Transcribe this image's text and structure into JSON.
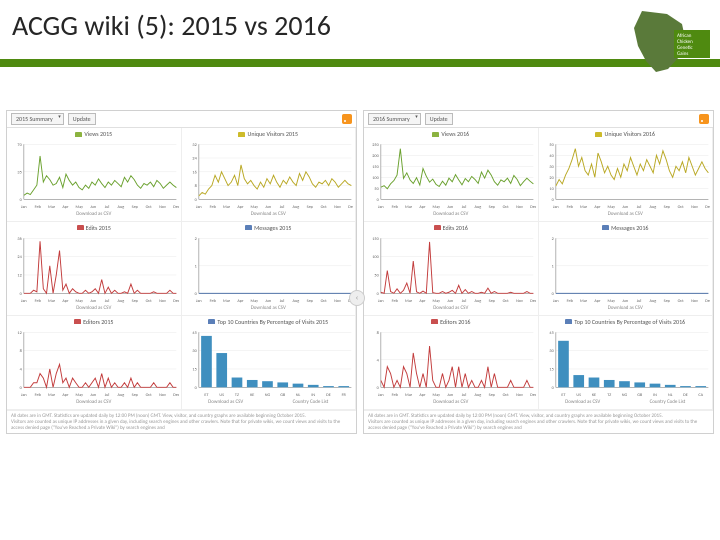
{
  "header": {
    "title": "ACGG wiki (5): 2015 vs 2016",
    "title_color": "#262626",
    "title_fontsize": 28,
    "bar_color": "#4f8a10"
  },
  "logo": {
    "africa_fill": "#5a7a3a",
    "text_box_fill": "#4f8a10",
    "lines": [
      "African",
      "Chicken",
      "Genetic",
      "Gains"
    ]
  },
  "global": {
    "months": [
      "Jan",
      "Feb",
      "Mar",
      "Apr",
      "May",
      "Jun",
      "Jul",
      "Aug",
      "Sep",
      "Oct",
      "Nov",
      "Dec"
    ],
    "grid_color": "#e6e6e6",
    "download_csv": "Download as CSV",
    "country_list": "Country Code List",
    "beginning": "beginning October 2015."
  },
  "left": {
    "summary_label": "2015 Summary",
    "update_label": "Update",
    "footer": "All dates are in GMT. Statistics are updated daily by 12:00 PM (noon) GMT. View, visitor, and country graphs are available",
    "footer2": "Visitors are counted as unique IP addresses in a given day, including search engines and other crawlers. Note that for private wikis, we count views and visits to the access denied page (\"You've Reached a Private Wiki\") by search engines and",
    "charts": [
      {
        "title": "Views 2015",
        "folder_color": "#8cb340",
        "line_color": "#6aa12e",
        "ymax": 70,
        "yticks": [
          0,
          35,
          70
        ],
        "series": [
          5,
          8,
          6,
          12,
          18,
          55,
          22,
          30,
          25,
          18,
          20,
          28,
          15,
          32,
          24,
          18,
          22,
          15,
          12,
          18,
          14,
          22,
          18,
          26,
          20,
          15,
          22,
          18,
          24,
          20,
          16,
          28,
          22,
          30,
          25,
          18,
          14,
          20,
          18,
          22,
          16,
          24,
          20,
          14,
          18,
          22,
          18,
          15
        ]
      },
      {
        "title": "Unique Visitors 2015",
        "folder_color": "#cdbb2a",
        "line_color": "#b9a824",
        "ymax": 32,
        "yticks": [
          0,
          8,
          16,
          24,
          32
        ],
        "series": [
          2,
          4,
          3,
          6,
          8,
          14,
          10,
          16,
          12,
          8,
          10,
          14,
          8,
          20,
          12,
          9,
          11,
          8,
          6,
          10,
          7,
          12,
          9,
          14,
          10,
          7,
          11,
          9,
          13,
          10,
          8,
          15,
          11,
          16,
          13,
          9,
          7,
          10,
          9,
          11,
          8,
          12,
          10,
          7,
          9,
          11,
          9,
          8
        ]
      },
      {
        "title": "Edits 2015",
        "folder_color": "#c94f4f",
        "line_color": "#c23b3b",
        "ymax": 36,
        "yticks": [
          0,
          12,
          24,
          36
        ],
        "series": [
          0,
          0,
          0,
          2,
          1,
          34,
          3,
          0,
          18,
          0,
          12,
          28,
          2,
          6,
          0,
          3,
          1,
          0,
          0,
          2,
          0,
          1,
          3,
          0,
          9,
          0,
          4,
          0,
          2,
          0,
          0,
          1,
          0,
          6,
          0,
          2,
          0,
          0,
          0,
          0,
          1,
          0,
          0,
          0,
          0,
          2,
          0,
          0
        ]
      },
      {
        "title": "Messages 2015",
        "folder_color": "#5b7fb8",
        "line_color": "#3f66a3",
        "ymax": 2,
        "yticks": [
          0,
          1,
          2
        ],
        "series": [
          0,
          0,
          0,
          0,
          0,
          0,
          0,
          0,
          0,
          0,
          0,
          0,
          0,
          0,
          0,
          0,
          0,
          0,
          0,
          0,
          0,
          0,
          0,
          0,
          0,
          0,
          0,
          0,
          0,
          0,
          0,
          0,
          0,
          0,
          0,
          0,
          0,
          0,
          0,
          0,
          0,
          0,
          0,
          0,
          0,
          0,
          0,
          0
        ]
      },
      {
        "title": "Editors 2015",
        "folder_color": "#c94f4f",
        "line_color": "#c23b3b",
        "ymax": 12,
        "yticks": [
          0,
          4,
          8,
          12
        ],
        "series": [
          0,
          0,
          0,
          1,
          1,
          3,
          2,
          0,
          4,
          0,
          3,
          5,
          1,
          2,
          0,
          2,
          1,
          0,
          0,
          1,
          0,
          1,
          2,
          0,
          3,
          0,
          2,
          0,
          1,
          0,
          0,
          1,
          0,
          2,
          0,
          1,
          0,
          0,
          0,
          0,
          1,
          0,
          0,
          0,
          0,
          1,
          0,
          0
        ]
      },
      {
        "title": "Top 10 Countries By Percentage of Visits 2015",
        "folder_color": "#5b7fb8",
        "bar_color": "#3f8fbf",
        "ymax": 45,
        "yticks": [
          0,
          15,
          30,
          45
        ],
        "labels": [
          "ET",
          "US",
          "TZ",
          "KE",
          "NG",
          "GB",
          "NL",
          "IN",
          "DE",
          "FR"
        ],
        "values": [
          42,
          28,
          8,
          6,
          5,
          4,
          3,
          2,
          1,
          1
        ]
      }
    ]
  },
  "right": {
    "summary_label": "2016 Summary",
    "update_label": "Update",
    "footer": "All dates are in GMT. Statistics are updated daily by 12:00 PM (noon) GMT. View, visitor, and country graphs are available",
    "footer2": "Visitors are counted as unique IP addresses in a given day, including search engines and other crawlers. Note that for private wikis, we count views and visits to the access denied page (\"You've Reached a Private Wiki\") by search engines and",
    "charts": [
      {
        "title": "Views 2016",
        "folder_color": "#8cb340",
        "line_color": "#6aa12e",
        "ymax": 250,
        "yticks": [
          0,
          50,
          100,
          150,
          200,
          250
        ],
        "series": [
          55,
          62,
          48,
          70,
          85,
          110,
          230,
          95,
          120,
          88,
          72,
          98,
          65,
          140,
          105,
          78,
          92,
          68,
          58,
          82,
          64,
          96,
          80,
          112,
          88,
          66,
          94,
          80,
          104,
          90,
          72,
          124,
          96,
          132,
          110,
          80,
          64,
          88,
          80,
          96,
          72,
          108,
          90,
          62,
          80,
          96,
          82,
          70
        ]
      },
      {
        "title": "Unique Visitors 2016",
        "folder_color": "#cdbb2a",
        "line_color": "#b9a824",
        "ymax": 50,
        "yticks": [
          0,
          10,
          20,
          30,
          40,
          50
        ],
        "series": [
          12,
          18,
          14,
          22,
          28,
          36,
          46,
          30,
          38,
          26,
          22,
          32,
          20,
          42,
          34,
          24,
          30,
          22,
          18,
          28,
          20,
          32,
          26,
          38,
          30,
          22,
          32,
          26,
          36,
          30,
          24,
          40,
          32,
          44,
          36,
          26,
          20,
          30,
          26,
          34,
          24,
          38,
          30,
          22,
          28,
          34,
          28,
          24
        ]
      },
      {
        "title": "Edits 2016",
        "folder_color": "#c94f4f",
        "line_color": "#c23b3b",
        "ymax": 150,
        "yticks": [
          0,
          50,
          100,
          150
        ],
        "series": [
          3,
          0,
          62,
          5,
          0,
          12,
          0,
          8,
          28,
          0,
          88,
          4,
          0,
          6,
          0,
          140,
          2,
          0,
          0,
          5,
          0,
          3,
          8,
          0,
          22,
          0,
          10,
          0,
          5,
          0,
          0,
          3,
          0,
          14,
          0,
          5,
          0,
          0,
          0,
          0,
          3,
          0,
          0,
          0,
          0,
          5,
          0,
          0
        ]
      },
      {
        "title": "Messages 2016",
        "folder_color": "#5b7fb8",
        "line_color": "#3f66a3",
        "ymax": 2,
        "yticks": [
          0,
          1,
          2
        ],
        "series": [
          0,
          0,
          0,
          0,
          0,
          0,
          0,
          0,
          0,
          0,
          0,
          0,
          0,
          0,
          0,
          0,
          0,
          0,
          0,
          0,
          0,
          0,
          0,
          0,
          0,
          0,
          0,
          0,
          0,
          0,
          0,
          0,
          0,
          0,
          0,
          0,
          0,
          0,
          0,
          0,
          0,
          0,
          0,
          0,
          0,
          0,
          0,
          0
        ]
      },
      {
        "title": "Editors 2016",
        "folder_color": "#c94f4f",
        "line_color": "#c23b3b",
        "ymax": 8,
        "yticks": [
          0,
          4,
          8
        ],
        "series": [
          1,
          0,
          3,
          2,
          0,
          1,
          0,
          3,
          2,
          0,
          5,
          2,
          0,
          2,
          0,
          6,
          1,
          0,
          0,
          2,
          0,
          1,
          3,
          0,
          3,
          0,
          2,
          0,
          1,
          0,
          0,
          1,
          0,
          3,
          0,
          2,
          0,
          0,
          0,
          0,
          1,
          0,
          0,
          0,
          0,
          1,
          0,
          0
        ]
      },
      {
        "title": "Top 10 Countries By Percentage of Visits 2016",
        "folder_color": "#5b7fb8",
        "bar_color": "#3f8fbf",
        "ymax": 45,
        "yticks": [
          0,
          15,
          30,
          45
        ],
        "labels": [
          "ET",
          "US",
          "KE",
          "TZ",
          "NG",
          "GB",
          "IN",
          "NL",
          "DE",
          "CA"
        ],
        "values": [
          38,
          10,
          8,
          6,
          5,
          4,
          3,
          2,
          1,
          1
        ]
      }
    ]
  }
}
